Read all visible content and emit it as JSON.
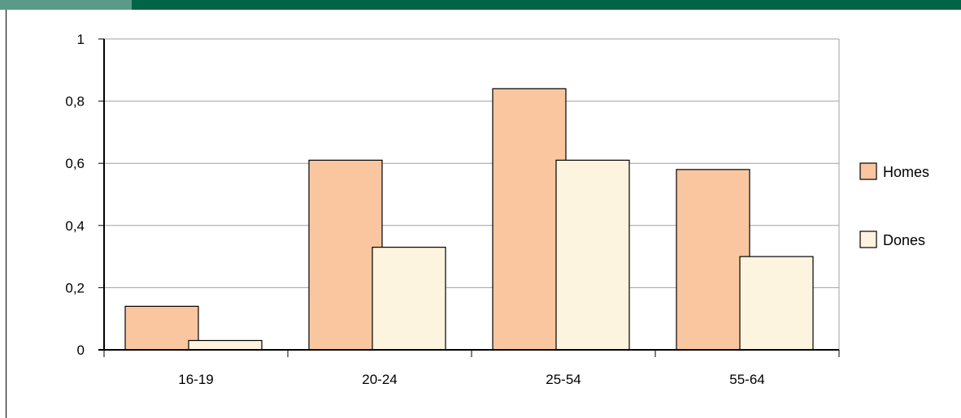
{
  "colors": {
    "header_bar": "#006547",
    "header_accent": "#5a9a86",
    "homes": "#f9c6a0",
    "dones": "#fdf4df",
    "gridline": "#a0a0a0"
  },
  "chart_data": {
    "type": "bar",
    "title": "",
    "xlabel": "",
    "ylabel": "",
    "categories": [
      "16-19",
      "20-24",
      "25-54",
      "55-64"
    ],
    "series": [
      {
        "name": "Homes",
        "values": [
          0.14,
          0.61,
          0.84,
          0.58
        ]
      },
      {
        "name": "Dones",
        "values": [
          0.03,
          0.33,
          0.61,
          0.3
        ]
      }
    ],
    "ylim": [
      0,
      1
    ],
    "yticks": [
      0,
      0.2,
      0.4,
      0.6,
      0.8,
      1
    ],
    "ytick_labels": [
      "0",
      "0,2",
      "0,4",
      "0,6",
      "0,8",
      "1"
    ],
    "grid": true,
    "legend_position": "right"
  }
}
